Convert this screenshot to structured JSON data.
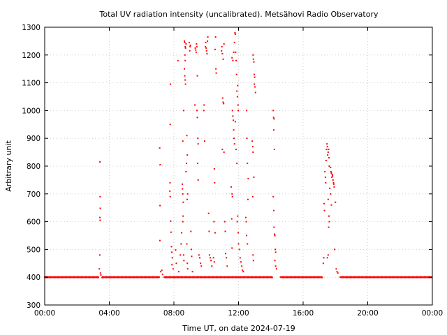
{
  "chart_data": {
    "type": "scatter",
    "title": "Total UV radiation intensity (uncalibrated). Metsähovi Radio Observatory",
    "xlabel": "Time UT, on date 2024-07-19",
    "ylabel": "Arbitrary unit",
    "xlim_hours": [
      0,
      24
    ],
    "ylim": [
      300,
      1300
    ],
    "x_ticks": [
      {
        "hours": 0,
        "label": "00:00"
      },
      {
        "hours": 4,
        "label": "04:00"
      },
      {
        "hours": 8,
        "label": "08:00"
      },
      {
        "hours": 12,
        "label": "12:00"
      },
      {
        "hours": 16,
        "label": "16:00"
      },
      {
        "hours": 20,
        "label": "20:00"
      },
      {
        "hours": 24,
        "label": "00:00"
      }
    ],
    "y_ticks": [
      300,
      400,
      500,
      600,
      700,
      800,
      900,
      1000,
      1100,
      1200,
      1300
    ],
    "grid": true,
    "marker_color": "#ff0000",
    "baseline_value": 400,
    "baseline_segments_hours": [
      [
        0.0,
        3.35
      ],
      [
        3.55,
        7.1
      ],
      [
        7.4,
        14.1
      ],
      [
        14.6,
        17.2
      ],
      [
        18.3,
        24.0
      ]
    ],
    "points": [
      [
        3.42,
        815
      ],
      [
        3.43,
        690
      ],
      [
        3.44,
        648
      ],
      [
        3.42,
        615
      ],
      [
        3.43,
        605
      ],
      [
        3.41,
        480
      ],
      [
        3.38,
        430
      ],
      [
        3.45,
        415
      ],
      [
        3.48,
        408
      ],
      [
        7.12,
        865
      ],
      [
        7.15,
        805
      ],
      [
        7.14,
        658
      ],
      [
        7.13,
        532
      ],
      [
        7.18,
        420
      ],
      [
        7.25,
        425
      ],
      [
        7.3,
        410
      ],
      [
        7.78,
        1095
      ],
      [
        7.77,
        950
      ],
      [
        7.76,
        740
      ],
      [
        7.75,
        710
      ],
      [
        7.77,
        690
      ],
      [
        7.8,
        602
      ],
      [
        7.82,
        562
      ],
      [
        7.85,
        510
      ],
      [
        7.87,
        490
      ],
      [
        7.9,
        470
      ],
      [
        7.88,
        445
      ],
      [
        7.95,
        430
      ],
      [
        8.25,
        1180
      ],
      [
        8.1,
        498
      ],
      [
        8.15,
        450
      ],
      [
        8.3,
        420
      ],
      [
        8.4,
        480
      ],
      [
        8.45,
        520
      ],
      [
        8.48,
        560
      ],
      [
        8.55,
        890
      ],
      [
        8.52,
        735
      ],
      [
        8.53,
        718
      ],
      [
        8.55,
        700
      ],
      [
        8.58,
        670
      ],
      [
        8.6,
        1000
      ],
      [
        8.57,
        620
      ],
      [
        8.55,
        600
      ],
      [
        8.6,
        480
      ],
      [
        8.62,
        460
      ],
      [
        8.65,
        1250
      ],
      [
        8.67,
        1245
      ],
      [
        8.7,
        1230
      ],
      [
        8.72,
        1225
      ],
      [
        8.75,
        1240
      ],
      [
        8.68,
        1200
      ],
      [
        8.7,
        1180
      ],
      [
        8.65,
        1150
      ],
      [
        8.67,
        1125
      ],
      [
        8.7,
        1110
      ],
      [
        8.72,
        1095
      ],
      [
        8.75,
        780
      ],
      [
        8.78,
        810
      ],
      [
        8.8,
        910
      ],
      [
        8.83,
        840
      ],
      [
        8.85,
        700
      ],
      [
        8.82,
        680
      ],
      [
        8.8,
        520
      ],
      [
        8.83,
        450
      ],
      [
        8.85,
        430
      ],
      [
        8.95,
        1245
      ],
      [
        9.0,
        1230
      ],
      [
        9.02,
        1235
      ],
      [
        8.98,
        1215
      ],
      [
        9.05,
        565
      ],
      [
        9.08,
        500
      ],
      [
        9.1,
        475
      ],
      [
        9.15,
        420
      ],
      [
        9.3,
        1020
      ],
      [
        9.32,
        1225
      ],
      [
        9.35,
        1218
      ],
      [
        9.38,
        1210
      ],
      [
        9.4,
        1240
      ],
      [
        9.42,
        1230
      ],
      [
        9.45,
        1125
      ],
      [
        9.43,
        1000
      ],
      [
        9.45,
        975
      ],
      [
        9.48,
        900
      ],
      [
        9.5,
        880
      ],
      [
        9.47,
        810
      ],
      [
        9.5,
        750
      ],
      [
        9.55,
        480
      ],
      [
        9.6,
        470
      ],
      [
        9.65,
        450
      ],
      [
        9.7,
        440
      ],
      [
        9.85,
        1000
      ],
      [
        9.87,
        1020
      ],
      [
        9.9,
        890
      ],
      [
        9.95,
        1230
      ],
      [
        9.97,
        1245
      ],
      [
        10.0,
        1225
      ],
      [
        10.02,
        1215
      ],
      [
        10.05,
        1205
      ],
      [
        10.1,
        1265
      ],
      [
        10.08,
        1250
      ],
      [
        10.15,
        630
      ],
      [
        10.18,
        565
      ],
      [
        10.2,
        480
      ],
      [
        10.25,
        470
      ],
      [
        10.3,
        460
      ],
      [
        10.35,
        440
      ],
      [
        10.55,
        1220
      ],
      [
        10.58,
        1265
      ],
      [
        10.6,
        1150
      ],
      [
        10.62,
        1135
      ],
      [
        10.5,
        790
      ],
      [
        10.52,
        740
      ],
      [
        10.48,
        600
      ],
      [
        10.55,
        560
      ],
      [
        10.45,
        470
      ],
      [
        10.5,
        455
      ],
      [
        10.95,
        1215
      ],
      [
        10.97,
        1230
      ],
      [
        11.0,
        1205
      ],
      [
        11.05,
        1185
      ],
      [
        11.1,
        1240
      ],
      [
        11.02,
        1045
      ],
      [
        11.05,
        1030
      ],
      [
        11.08,
        1025
      ],
      [
        11.0,
        860
      ],
      [
        11.1,
        850
      ],
      [
        11.15,
        600
      ],
      [
        11.18,
        565
      ],
      [
        11.2,
        485
      ],
      [
        11.25,
        470
      ],
      [
        11.3,
        440
      ],
      [
        11.6,
        1190
      ],
      [
        11.65,
        1180
      ],
      [
        11.7,
        1210
      ],
      [
        11.75,
        1245
      ],
      [
        11.78,
        1280
      ],
      [
        11.8,
        1275
      ],
      [
        11.82,
        1210
      ],
      [
        11.85,
        1180
      ],
      [
        11.88,
        1130
      ],
      [
        11.9,
        1070
      ],
      [
        11.93,
        1050
      ],
      [
        11.95,
        1090
      ],
      [
        11.97,
        1020
      ],
      [
        11.98,
        1000
      ],
      [
        11.62,
        1000
      ],
      [
        11.65,
        980
      ],
      [
        11.68,
        965
      ],
      [
        11.7,
        930
      ],
      [
        11.72,
        900
      ],
      [
        11.75,
        880
      ],
      [
        11.8,
        960
      ],
      [
        11.85,
        860
      ],
      [
        11.9,
        810
      ],
      [
        11.95,
        620
      ],
      [
        11.92,
        600
      ],
      [
        11.98,
        560
      ],
      [
        11.55,
        725
      ],
      [
        11.6,
        700
      ],
      [
        11.62,
        690
      ],
      [
        11.58,
        610
      ],
      [
        11.6,
        505
      ],
      [
        12.0,
        520
      ],
      [
        12.05,
        500
      ],
      [
        12.1,
        470
      ],
      [
        12.15,
        455
      ],
      [
        12.2,
        440
      ],
      [
        12.25,
        425
      ],
      [
        12.3,
        420
      ],
      [
        12.5,
        1000
      ],
      [
        12.52,
        900
      ],
      [
        12.55,
        810
      ],
      [
        12.6,
        755
      ],
      [
        12.58,
        680
      ],
      [
        12.45,
        615
      ],
      [
        12.48,
        600
      ],
      [
        12.5,
        550
      ],
      [
        12.55,
        520
      ],
      [
        12.9,
        1200
      ],
      [
        12.92,
        1185
      ],
      [
        12.95,
        1175
      ],
      [
        12.97,
        1130
      ],
      [
        13.0,
        1120
      ],
      [
        12.98,
        1095
      ],
      [
        13.02,
        1085
      ],
      [
        13.05,
        1065
      ],
      [
        12.85,
        890
      ],
      [
        12.88,
        870
      ],
      [
        12.9,
        850
      ],
      [
        12.95,
        760
      ],
      [
        12.88,
        690
      ],
      [
        12.9,
        480
      ],
      [
        12.92,
        460
      ],
      [
        14.15,
        1000
      ],
      [
        14.17,
        975
      ],
      [
        14.2,
        970
      ],
      [
        14.18,
        930
      ],
      [
        14.22,
        860
      ],
      [
        14.15,
        690
      ],
      [
        14.18,
        640
      ],
      [
        14.2,
        580
      ],
      [
        14.23,
        555
      ],
      [
        14.25,
        550
      ],
      [
        14.28,
        500
      ],
      [
        14.3,
        490
      ],
      [
        14.25,
        460
      ],
      [
        14.3,
        440
      ],
      [
        14.35,
        430
      ],
      [
        17.25,
        450
      ],
      [
        17.28,
        470
      ],
      [
        17.3,
        665
      ],
      [
        17.32,
        640
      ],
      [
        17.35,
        780
      ],
      [
        17.38,
        760
      ],
      [
        17.4,
        740
      ],
      [
        17.42,
        820
      ],
      [
        17.45,
        860
      ],
      [
        17.48,
        880
      ],
      [
        17.5,
        870
      ],
      [
        17.52,
        840
      ],
      [
        17.55,
        850
      ],
      [
        17.58,
        860
      ],
      [
        17.6,
        830
      ],
      [
        17.62,
        800
      ],
      [
        17.55,
        680
      ],
      [
        17.6,
        620
      ],
      [
        17.62,
        600
      ],
      [
        17.58,
        580
      ],
      [
        17.55,
        480
      ],
      [
        17.5,
        470
      ],
      [
        17.7,
        795
      ],
      [
        17.72,
        780
      ],
      [
        17.75,
        775
      ],
      [
        17.78,
        760
      ],
      [
        17.8,
        770
      ],
      [
        17.82,
        765
      ],
      [
        17.85,
        750
      ],
      [
        17.88,
        740
      ],
      [
        17.9,
        735
      ],
      [
        17.92,
        725
      ],
      [
        17.65,
        720
      ],
      [
        17.7,
        700
      ],
      [
        17.75,
        660
      ],
      [
        18.0,
        670
      ],
      [
        17.95,
        500
      ],
      [
        18.05,
        430
      ],
      [
        18.1,
        420
      ],
      [
        18.15,
        415
      ]
    ]
  }
}
